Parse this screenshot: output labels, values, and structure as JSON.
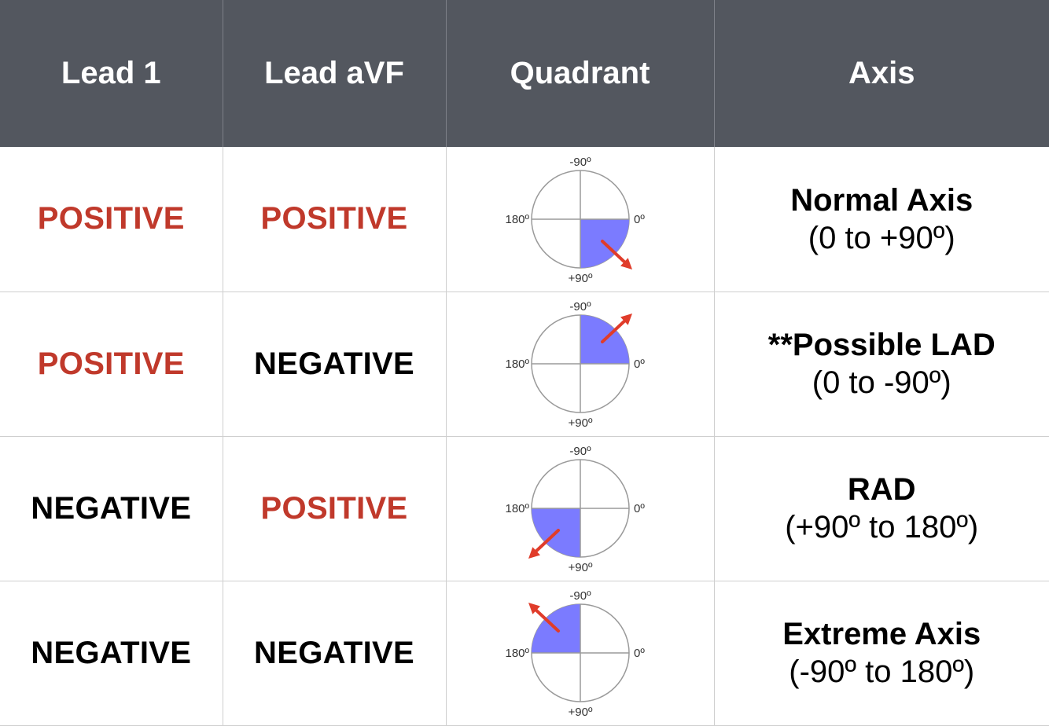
{
  "colors": {
    "header_bg": "#53575f",
    "positive": "#c0392b",
    "negative": "#000000",
    "quadrant_fill": "#7b7bff",
    "arrow": "#e03c2a"
  },
  "header": {
    "lead1": "Lead 1",
    "leadavf": "Lead aVF",
    "quadrant": "Quadrant",
    "axis": "Axis"
  },
  "quadrant_labels": {
    "top": "-90º",
    "left": "180º",
    "right": "0º",
    "bottom": "+90º"
  },
  "rows": [
    {
      "lead1": "POSITIVE",
      "lead1_color": "#c0392b",
      "leadavf": "POSITIVE",
      "leadavf_color": "#c0392b",
      "quadrant": "bottom-right",
      "axis_name": "Normal Axis",
      "axis_range": "(0 to +90º)"
    },
    {
      "lead1": "POSITIVE",
      "lead1_color": "#c0392b",
      "leadavf": "NEGATIVE",
      "leadavf_color": "#000000",
      "quadrant": "top-right",
      "axis_name": "**Possible LAD",
      "axis_range": "(0 to -90º)"
    },
    {
      "lead1": "NEGATIVE",
      "lead1_color": "#000000",
      "leadavf": "POSITIVE",
      "leadavf_color": "#c0392b",
      "quadrant": "bottom-left",
      "axis_name": "RAD",
      "axis_range": "(+90º to 180º)"
    },
    {
      "lead1": "NEGATIVE",
      "lead1_color": "#000000",
      "leadavf": "NEGATIVE",
      "leadavf_color": "#000000",
      "quadrant": "top-left",
      "axis_name": "Extreme Axis",
      "axis_range": "(-90º to 180º)"
    }
  ]
}
